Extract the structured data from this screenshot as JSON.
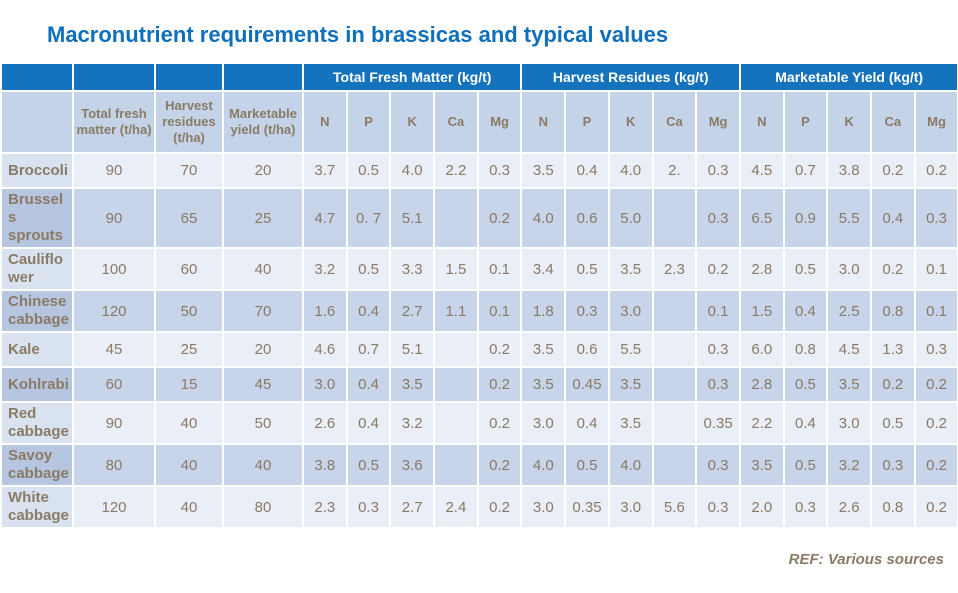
{
  "colors": {
    "title_blue": "#0e6fbb",
    "header_blue": "#1573be",
    "subheader_bg": "#c5d3e8",
    "row_odd_bg": "#e9eef7",
    "row_odd_label_bg": "#d9e3f0",
    "row_even_bg": "#c8d4e9",
    "row_even_label_bg": "#b6c6e0",
    "text_brown": "#8a7a66"
  },
  "chart_data": {
    "type": "table",
    "title": "Macronutrient requirements in brassicas and typical values",
    "footnote": "REF: Various sources",
    "group_headers": [
      {
        "label": "",
        "span": 1
      },
      {
        "label": "",
        "span": 1
      },
      {
        "label": "",
        "span": 1
      },
      {
        "label": "",
        "span": 1
      },
      {
        "label": "Total Fresh Matter (kg/t)",
        "span": 5
      },
      {
        "label": "Harvest Residues (kg/t)",
        "span": 5
      },
      {
        "label": "Marketable Yield (kg/t)",
        "span": 5
      }
    ],
    "columns": [
      "",
      "Total fresh matter (t/ha)",
      "Harvest residues (t/ha)",
      "Marketable yield (t/ha)",
      "N",
      "P",
      "K",
      "Ca",
      "Mg",
      "N",
      "P",
      "K",
      "Ca",
      "Mg",
      "N",
      "P",
      "K",
      "Ca",
      "Mg"
    ],
    "rows": [
      {
        "label": "Broccoli",
        "values": [
          "90",
          "70",
          "20",
          "3.7",
          "0.5",
          "4.0",
          "2.2",
          "0.3",
          "3.5",
          "0.4",
          "4.0",
          "2.",
          "0.3",
          "4.5",
          "0.7",
          "3.8",
          "0.2",
          "0.2"
        ]
      },
      {
        "label": "Brussels sprouts",
        "values": [
          "90",
          "65",
          "25",
          "4.7",
          "0. 7",
          "5.1",
          "",
          "0.2",
          "4.0",
          "0.6",
          "5.0",
          "",
          "0.3",
          "6.5",
          "0.9",
          "5.5",
          "0.4",
          "0.3"
        ]
      },
      {
        "label": "Cauliflo wer",
        "values": [
          "100",
          "60",
          "40",
          "3.2",
          "0.5",
          "3.3",
          "1.5",
          "0.1",
          "3.4",
          "0.5",
          "3.5",
          "2.3",
          "0.2",
          "2.8",
          "0.5",
          "3.0",
          "0.2",
          "0.1"
        ]
      },
      {
        "label": "Chinese cabbage",
        "values": [
          "120",
          "50",
          "70",
          "1.6",
          "0.4",
          "2.7",
          "1.1",
          "0.1",
          "1.8",
          "0.3",
          "3.0",
          "",
          "0.1",
          "1.5",
          "0.4",
          "2.5",
          "0.8",
          "0.1"
        ]
      },
      {
        "label": "Kale",
        "values": [
          "45",
          "25",
          "20",
          "4.6",
          "0.7",
          "5.1",
          "",
          "0.2",
          "3.5",
          "0.6",
          "5.5",
          "",
          "0.3",
          "6.0",
          "0.8",
          "4.5",
          "1.3",
          "0.3"
        ]
      },
      {
        "label": "Kohlrabi",
        "values": [
          "60",
          "15",
          "45",
          "3.0",
          "0.4",
          "3.5",
          "",
          "0.2",
          "3.5",
          "0.45",
          "3.5",
          "",
          "0.3",
          "2.8",
          "0.5",
          "3.5",
          "0.2",
          "0.2"
        ]
      },
      {
        "label": "Red cabbage",
        "values": [
          "90",
          "40",
          "50",
          "2.6",
          "0.4",
          "3.2",
          "",
          "0.2",
          "3.0",
          "0.4",
          "3.5",
          "",
          "0.35",
          "2.2",
          "0.4",
          "3.0",
          "0.5",
          "0.2"
        ]
      },
      {
        "label": "Savoy cabbage",
        "values": [
          "80",
          "40",
          "40",
          "3.8",
          "0.5",
          "3.6",
          "",
          "0.2",
          "4.0",
          "0.5",
          "4.0",
          "",
          "0.3",
          "3.5",
          "0.5",
          "3.2",
          "0.3",
          "0.2"
        ]
      },
      {
        "label": "White cabbage",
        "values": [
          "120",
          "40",
          "80",
          "2.3",
          "0.3",
          "2.7",
          "2.4",
          "0.2",
          "3.0",
          "0.35",
          "3.0",
          "5.6",
          "0.3",
          "2.0",
          "0.3",
          "2.6",
          "0.8",
          "0.2"
        ]
      }
    ]
  }
}
